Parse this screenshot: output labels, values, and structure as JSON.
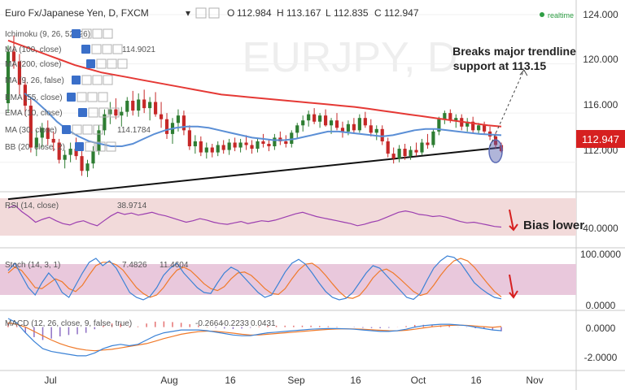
{
  "header": {
    "symbol": "Euro Fx/Japanese Yen, D, FXCM",
    "ohlc": [
      {
        "k": "O",
        "v": "112.984"
      },
      {
        "k": "H",
        "v": "113.167"
      },
      {
        "k": "L",
        "v": "112.835"
      },
      {
        "k": "C",
        "v": "112.947"
      }
    ],
    "status": "realtime"
  },
  "indicators": [
    {
      "label": "Ichimoku (9, 26, 52, 26)",
      "value": ""
    },
    {
      "label": "MA (100, close)",
      "value": "114.9021"
    },
    {
      "label": "MA (200, close)",
      "value": ""
    },
    {
      "label": "MA (9, 26, false)",
      "value": ""
    },
    {
      "label": "EMA (55, close)",
      "value": ""
    },
    {
      "label": "EMA (10, close)",
      "value": ""
    },
    {
      "label": "MA (30, close)",
      "value": "114.1784"
    },
    {
      "label": "BB (20, close, 2)",
      "value": ""
    }
  ],
  "main_axis": {
    "ticks": [
      "124.000",
      "120.000",
      "116.000",
      "112.000"
    ],
    "current_price": "112.947"
  },
  "annotations": {
    "breaks": "Breaks major trendline support at 113.15",
    "bias": "Bias lower"
  },
  "rsi": {
    "label": "RSI (14, close)",
    "value": "38.9714",
    "ticks": [
      "40.0000"
    ]
  },
  "stoch": {
    "label": "Stoch (14, 3, 1)",
    "k": "7.4826",
    "d": "11.4604",
    "ticks": [
      "100.0000",
      "0.0000"
    ]
  },
  "macd": {
    "label": "MACD (12, 26, close, 9, false, true)",
    "hist": "-0.2664",
    "macd": "-0.2233",
    "signal": "0.0431",
    "ticks": [
      "0.0000",
      "-2.0000"
    ]
  },
  "x_axis": {
    "ticks": [
      "Jul",
      "Aug",
      "16",
      "Sep",
      "16",
      "Oct",
      "16",
      "Nov"
    ]
  },
  "colors": {
    "up_candle": "#2e7d32",
    "down_candle": "#c62828",
    "ma100": "#e53935",
    "ma30": "#5b8fd6",
    "trendline": "#111111",
    "rsi": "#9c3fb0",
    "stoch_k": "#3b82d6",
    "stoch_d": "#f07a2a",
    "macd": "#3b82d6",
    "signal": "#f07a2a",
    "band_fill": "#f2dada",
    "stoch_fill": "#e9c8dc",
    "accent": "#d62020"
  },
  "chart_data": [
    {
      "type": "candlestick",
      "ylim": [
        110,
        124
      ],
      "x_labels": [
        "Jul",
        "Aug",
        "16",
        "Sep",
        "16",
        "Oct",
        "16",
        "Nov"
      ],
      "candles": [
        [
          116.8,
          121.5,
          116.0,
          121.0
        ],
        [
          121.0,
          122.3,
          119.6,
          120.2
        ],
        [
          120.2,
          120.8,
          117.5,
          118.3
        ],
        [
          118.3,
          118.9,
          115.8,
          116.6
        ],
        [
          116.6,
          117.1,
          112.8,
          113.2
        ],
        [
          113.2,
          114.6,
          112.5,
          114.0
        ],
        [
          114.0,
          115.2,
          113.2,
          114.8
        ],
        [
          114.8,
          115.4,
          113.4,
          113.9
        ],
        [
          113.9,
          114.5,
          112.9,
          113.6
        ],
        [
          113.6,
          113.9,
          111.9,
          112.2
        ],
        [
          112.2,
          113.0,
          111.5,
          112.6
        ],
        [
          112.6,
          113.6,
          112.0,
          113.1
        ],
        [
          113.1,
          114.0,
          112.2,
          112.5
        ],
        [
          112.5,
          112.9,
          110.9,
          111.3
        ],
        [
          111.3,
          112.2,
          110.8,
          111.9
        ],
        [
          111.9,
          113.3,
          111.5,
          112.9
        ],
        [
          112.9,
          115.0,
          112.6,
          114.6
        ],
        [
          114.6,
          116.3,
          114.2,
          115.9
        ],
        [
          115.9,
          116.9,
          115.1,
          116.3
        ],
        [
          116.3,
          117.2,
          115.5,
          115.8
        ],
        [
          115.8,
          116.5,
          114.9,
          116.1
        ],
        [
          116.1,
          117.3,
          115.7,
          117.0
        ],
        [
          117.0,
          117.8,
          115.8,
          116.2
        ],
        [
          116.2,
          117.6,
          115.7,
          117.1
        ],
        [
          117.1,
          117.9,
          116.0,
          116.4
        ],
        [
          116.4,
          117.3,
          115.4,
          116.9
        ],
        [
          116.9,
          117.7,
          115.7,
          115.9
        ],
        [
          115.9,
          116.9,
          114.8,
          115.5
        ],
        [
          115.5,
          116.0,
          113.9,
          114.3
        ],
        [
          114.3,
          115.6,
          113.5,
          115.2
        ],
        [
          115.2,
          116.3,
          114.5,
          115.8
        ],
        [
          115.8,
          116.2,
          114.2,
          114.6
        ],
        [
          114.6,
          115.0,
          113.0,
          113.3
        ],
        [
          113.3,
          114.2,
          112.7,
          113.7
        ],
        [
          113.7,
          114.1,
          112.5,
          112.8
        ],
        [
          112.8,
          113.6,
          112.3,
          113.2
        ],
        [
          113.2,
          113.5,
          112.4,
          112.8
        ],
        [
          112.8,
          113.7,
          112.5,
          113.4
        ],
        [
          113.4,
          113.8,
          112.7,
          113.0
        ],
        [
          113.0,
          113.9,
          112.6,
          113.6
        ],
        [
          113.6,
          114.0,
          112.9,
          113.2
        ],
        [
          113.2,
          113.9,
          112.8,
          113.6
        ],
        [
          113.6,
          114.2,
          113.0,
          113.4
        ],
        [
          113.4,
          113.8,
          112.7,
          113.1
        ],
        [
          113.1,
          113.9,
          112.8,
          113.7
        ],
        [
          113.7,
          114.3,
          113.2,
          113.5
        ],
        [
          113.5,
          113.8,
          112.9,
          113.3
        ],
        [
          113.3,
          114.3,
          113.0,
          114.0
        ],
        [
          114.0,
          114.5,
          113.4,
          113.7
        ],
        [
          113.7,
          114.2,
          113.2,
          113.5
        ],
        [
          113.5,
          114.6,
          113.2,
          114.4
        ],
        [
          114.4,
          115.2,
          114.0,
          115.0
        ],
        [
          115.0,
          115.8,
          114.5,
          115.4
        ],
        [
          115.4,
          116.2,
          114.9,
          115.9
        ],
        [
          115.9,
          116.4,
          115.1,
          115.3
        ],
        [
          115.3,
          116.0,
          114.8,
          115.8
        ],
        [
          115.8,
          116.3,
          114.9,
          115.0
        ],
        [
          115.0,
          115.6,
          114.3,
          115.4
        ],
        [
          115.4,
          116.0,
          114.6,
          114.8
        ],
        [
          114.8,
          115.3,
          114.0,
          114.5
        ],
        [
          114.5,
          115.4,
          114.2,
          115.1
        ],
        [
          115.1,
          115.6,
          114.3,
          114.6
        ],
        [
          114.6,
          115.9,
          114.4,
          115.6
        ],
        [
          115.6,
          116.1,
          114.8,
          115.0
        ],
        [
          115.0,
          115.5,
          114.1,
          114.4
        ],
        [
          114.4,
          115.0,
          113.8,
          114.7
        ],
        [
          114.7,
          115.0,
          113.4,
          113.7
        ],
        [
          113.7,
          114.0,
          112.4,
          112.7
        ],
        [
          112.7,
          113.2,
          111.9,
          112.3
        ],
        [
          112.3,
          113.4,
          112.0,
          113.1
        ],
        [
          113.1,
          113.5,
          112.2,
          112.5
        ],
        [
          112.5,
          113.3,
          112.2,
          113.0
        ],
        [
          113.0,
          113.6,
          112.5,
          112.8
        ],
        [
          112.8,
          113.9,
          112.6,
          113.6
        ],
        [
          113.6,
          114.3,
          113.1,
          113.4
        ],
        [
          113.4,
          114.7,
          113.2,
          114.5
        ],
        [
          114.5,
          115.7,
          114.2,
          115.5
        ],
        [
          115.5,
          116.2,
          115.1,
          116.0
        ],
        [
          116.0,
          116.3,
          115.2,
          115.4
        ],
        [
          115.4,
          115.9,
          114.8,
          115.6
        ],
        [
          115.6,
          115.9,
          114.6,
          114.9
        ],
        [
          114.9,
          115.6,
          114.5,
          115.3
        ],
        [
          115.3,
          115.7,
          114.4,
          114.6
        ],
        [
          114.6,
          115.2,
          114.3,
          115.0
        ],
        [
          115.0,
          115.3,
          114.3,
          114.5
        ],
        [
          114.5,
          114.9,
          113.8,
          114.1
        ],
        [
          114.1,
          114.4,
          113.1,
          113.4
        ],
        [
          113.4,
          113.6,
          112.8,
          112.9
        ]
      ],
      "ma100": [
        121.9,
        121.5,
        121.1,
        120.7,
        120.3,
        119.9,
        119.6,
        119.3,
        119.1,
        118.9,
        118.7,
        118.5,
        118.3,
        118.1,
        117.9,
        117.7,
        117.5,
        117.4,
        117.3,
        117.2,
        117.1,
        117.0,
        116.9,
        116.8,
        116.7,
        116.6,
        116.5,
        116.35,
        116.2,
        116.05,
        115.9,
        115.75,
        115.6,
        115.45,
        115.3,
        115.15,
        115.0,
        114.9
      ],
      "ma30": [
        117.6,
        117.0,
        116.2,
        115.3,
        114.6,
        114.1,
        113.7,
        113.5,
        113.3,
        113.3,
        113.5,
        113.9,
        114.3,
        114.6,
        114.8,
        114.9,
        114.9,
        114.8,
        114.6,
        114.4,
        114.2,
        114.0,
        113.9,
        113.8,
        113.8,
        113.9,
        114.1,
        114.3,
        114.5,
        114.5,
        114.4,
        114.3,
        114.2,
        114.1,
        114.2,
        114.4,
        114.6,
        114.7,
        114.7,
        114.6,
        114.5,
        114.4,
        114.3,
        114.25,
        114.2
      ],
      "trendline": [
        [
          0,
          109.0
        ],
        [
          87,
          113.2
        ]
      ],
      "breakdown_arrow": [
        [
          85,
          113.3
        ],
        [
          91,
          119.5
        ]
      ]
    },
    {
      "type": "line",
      "name": "RSI (14, close)",
      "ylim": [
        20,
        80
      ],
      "band": [
        30,
        70
      ],
      "values": [
        66,
        70,
        61,
        54,
        46,
        50,
        53,
        48,
        44,
        42,
        46,
        48,
        44,
        41,
        48,
        55,
        60,
        57,
        59,
        56,
        58,
        60,
        57,
        55,
        52,
        49,
        46,
        48,
        51,
        49,
        46,
        44,
        43,
        45,
        47,
        44,
        46,
        48,
        47,
        49,
        52,
        55,
        58,
        60,
        57,
        54,
        52,
        50,
        48,
        46,
        44,
        41,
        43,
        46,
        48,
        52,
        56,
        60,
        62,
        60,
        57,
        56,
        54,
        55,
        53,
        50,
        47,
        45,
        46,
        44,
        42,
        40,
        39
      ]
    },
    {
      "type": "line",
      "name": "Stoch (14, 3, 1)",
      "ylim": [
        0,
        100
      ],
      "band": [
        20,
        80
      ],
      "k": [
        65,
        80,
        55,
        30,
        15,
        40,
        60,
        45,
        20,
        10,
        35,
        60,
        82,
        90,
        75,
        85,
        70,
        45,
        20,
        10,
        5,
        12,
        30,
        55,
        70,
        80,
        60,
        45,
        30,
        20,
        18,
        40,
        60,
        72,
        65,
        50,
        35,
        20,
        10,
        15,
        38,
        62,
        80,
        88,
        78,
        60,
        40,
        22,
        10,
        5,
        8,
        20,
        40,
        60,
        75,
        70,
        55,
        40,
        25,
        10,
        6,
        18,
        45,
        70,
        85,
        95,
        92,
        80,
        60,
        40,
        28,
        18,
        10,
        7
      ],
      "d": [
        60,
        72,
        65,
        48,
        30,
        28,
        38,
        48,
        42,
        28,
        22,
        35,
        56,
        75,
        82,
        82,
        77,
        66,
        48,
        30,
        18,
        10,
        15,
        30,
        50,
        66,
        72,
        65,
        52,
        38,
        28,
        24,
        32,
        48,
        60,
        62,
        55,
        42,
        28,
        18,
        16,
        28,
        48,
        66,
        78,
        80,
        70,
        55,
        38,
        22,
        10,
        8,
        14,
        30,
        50,
        64,
        68,
        60,
        48,
        35,
        22,
        14,
        18,
        35,
        55,
        72,
        85,
        90,
        85,
        72,
        55,
        38,
        22,
        11
      ]
    },
    {
      "type": "line",
      "name": "MACD (12, 26, close, 9, false, true)",
      "ylim": [
        -2.8,
        0.6
      ],
      "macd": [
        0.6,
        0.3,
        -0.4,
        -1.0,
        -1.5,
        -1.7,
        -1.8,
        -1.9,
        -2.0,
        -2.0,
        -1.8,
        -1.5,
        -1.3,
        -1.2,
        -1.3,
        -1.2,
        -0.9,
        -0.6,
        -0.4,
        -0.3,
        -0.2,
        -0.2,
        -0.2,
        -0.25,
        -0.35,
        -0.45,
        -0.55,
        -0.6,
        -0.6,
        -0.5,
        -0.4,
        -0.35,
        -0.3,
        -0.25,
        -0.2,
        -0.15,
        -0.12,
        -0.1,
        -0.1,
        -0.12,
        -0.15,
        -0.2,
        -0.25,
        -0.3,
        -0.3,
        -0.25,
        -0.15,
        0.0,
        0.1,
        0.15,
        0.2,
        0.2,
        0.15,
        0.1,
        0.0,
        -0.1,
        -0.2,
        -0.25
      ],
      "signal": [
        0.3,
        0.2,
        0.0,
        -0.3,
        -0.6,
        -0.9,
        -1.15,
        -1.35,
        -1.5,
        -1.6,
        -1.65,
        -1.6,
        -1.55,
        -1.45,
        -1.35,
        -1.25,
        -1.15,
        -0.98,
        -0.8,
        -0.65,
        -0.5,
        -0.4,
        -0.32,
        -0.28,
        -0.3,
        -0.35,
        -0.42,
        -0.5,
        -0.55,
        -0.55,
        -0.5,
        -0.45,
        -0.4,
        -0.35,
        -0.3,
        -0.25,
        -0.2,
        -0.16,
        -0.13,
        -0.12,
        -0.13,
        -0.15,
        -0.18,
        -0.22,
        -0.25,
        -0.26,
        -0.22,
        -0.15,
        -0.06,
        0.02,
        0.08,
        0.12,
        0.14,
        0.12,
        0.08,
        0.03,
        -0.02,
        0.04
      ]
    }
  ]
}
